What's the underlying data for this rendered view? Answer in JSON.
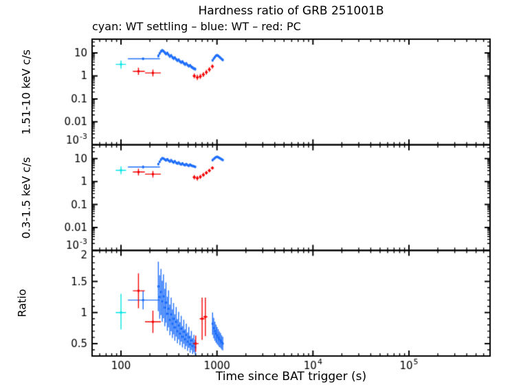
{
  "title": "Hardness ratio of GRB 251001B",
  "subtitle": "cyan: WT settling – blue: WT – red: PC",
  "colors": {
    "wt_settling": "#00e6e6",
    "wt": "#1e6efc",
    "pc": "#f40000",
    "axis": "#000000",
    "background": "#ffffff"
  },
  "chart_data": {
    "type": "scatter",
    "grid": "off",
    "legend_position": "subtitle-text",
    "x_axis": {
      "label": "Time since BAT trigger (s)",
      "scale": "log",
      "range": [
        50,
        700000
      ],
      "ticks": [
        {
          "v": 100,
          "base": "100"
        },
        {
          "v": 1000,
          "base": "1000"
        },
        {
          "v": 10000,
          "base": "10",
          "exp": "4"
        },
        {
          "v": 100000,
          "base": "10",
          "exp": "5"
        }
      ]
    },
    "panels": [
      {
        "id": "hard",
        "ylabel": "1.51-10 keV c/s",
        "scale": "log",
        "range": [
          0.001,
          40
        ],
        "ticks": [
          {
            "v": 10,
            "base": "10"
          },
          {
            "v": 1,
            "base": "1"
          },
          {
            "v": 0.1,
            "base": "0.1"
          },
          {
            "v": 0.01,
            "base": "0.01"
          },
          {
            "v": 0.001,
            "base": "10",
            "exp": "-3"
          }
        ]
      },
      {
        "id": "soft",
        "ylabel": "0.3-1.5 keV c/s",
        "scale": "log",
        "range": [
          0.001,
          40
        ],
        "ticks": [
          {
            "v": 10,
            "base": "10"
          },
          {
            "v": 1,
            "base": "1"
          },
          {
            "v": 0.1,
            "base": "0.1"
          },
          {
            "v": 0.01,
            "base": "0.01"
          },
          {
            "v": 0.001,
            "base": "10",
            "exp": "-3"
          }
        ]
      },
      {
        "id": "ratio",
        "ylabel": "Ratio",
        "scale": "linear",
        "range": [
          0.3,
          2
        ],
        "ticks": [
          {
            "v": 2,
            "base": "2"
          },
          {
            "v": 1.5,
            "base": "1.5"
          },
          {
            "v": 1,
            "base": "1"
          },
          {
            "v": 0.5,
            "base": "0.5"
          }
        ]
      }
    ],
    "series": [
      {
        "name": "WT settling",
        "color_key": "wt_settling",
        "data": {
          "hard": [
            {
              "t": [
                100
              ],
              "t_lo": [
                88
              ],
              "t_hi": [
                113
              ],
              "y": [
                3.2
              ],
              "y_lo": [
                2.1
              ],
              "y_hi": [
                4.7
              ]
            }
          ],
          "soft": [
            {
              "t": [
                100
              ],
              "t_lo": [
                88
              ],
              "t_hi": [
                113
              ],
              "y": [
                3.1
              ],
              "y_lo": [
                2.1
              ],
              "y_hi": [
                4.5
              ]
            }
          ],
          "ratio": [
            {
              "t": [
                100
              ],
              "t_lo": [
                88
              ],
              "t_hi": [
                113
              ],
              "y": [
                1.0
              ],
              "y_lo": [
                0.73
              ],
              "y_hi": [
                1.3
              ]
            }
          ]
        }
      },
      {
        "name": "WT",
        "color_key": "wt",
        "data": {
          "hard": [
            {
              "t": [
                170
              ],
              "t_lo": [
                118
              ],
              "t_hi": [
                255
              ],
              "y": [
                5.6
              ],
              "y_lo": [
                4.9
              ],
              "y_hi": [
                6.4
              ]
            },
            {
              "t": [
                245,
                253,
                261,
                269,
                277,
                286,
                294,
                304,
                313,
                323,
                333,
                343,
                353,
                364,
                376,
                387,
                399,
                411,
                424,
                437,
                451,
                465,
                479,
                494,
                509,
                525,
                541,
                558,
                575,
                593
              ],
              "y": [
                7.5,
                9.6,
                11.8,
                13.0,
                12.1,
                10.5,
                9.2,
                9.9,
                8.4,
                7.2,
                7.8,
                6.6,
                5.8,
                6.3,
                5.3,
                4.7,
                5.1,
                4.3,
                3.9,
                4.2,
                3.6,
                3.2,
                3.5,
                3.0,
                2.7,
                2.9,
                2.5,
                2.3,
                2.1,
                2.0
              ],
              "t_frac": 0.012,
              "y_frac": 0.16
            },
            {
              "t": [
                900,
                925,
                950,
                977,
                1003,
                1031,
                1059,
                1088,
                1118,
                1149
              ],
              "y": [
                4.8,
                5.7,
                6.6,
                7.6,
                8.0,
                7.5,
                6.8,
                6.1,
                5.5,
                5.0
              ],
              "t_frac": 0.012,
              "y_frac": 0.13
            }
          ],
          "soft": [
            {
              "t": [
                170
              ],
              "t_lo": [
                118
              ],
              "t_hi": [
                255
              ],
              "y": [
                4.3
              ],
              "y_lo": [
                3.7
              ],
              "y_hi": [
                5.0
              ]
            },
            {
              "t": [
                245,
                253,
                261,
                269,
                277,
                286,
                294,
                304,
                313,
                323,
                333,
                343,
                353,
                364,
                376,
                387,
                399,
                411,
                424,
                437,
                451,
                465,
                479,
                494,
                509,
                525,
                541,
                558,
                575,
                593
              ],
              "y": [
                5.8,
                7.3,
                9.1,
                10.4,
                10.1,
                9.2,
                8.4,
                9.4,
                8.3,
                7.5,
                8.5,
                7.5,
                6.8,
                7.7,
                6.6,
                6.1,
                6.8,
                6.0,
                5.6,
                6.2,
                5.5,
                5.2,
                5.8,
                5.2,
                4.9,
                5.5,
                5.0,
                4.8,
                4.6,
                4.4
              ],
              "t_frac": 0.012,
              "y_frac": 0.13
            },
            {
              "t": [
                900,
                925,
                950,
                977,
                1003,
                1031,
                1059,
                1088,
                1118,
                1149
              ],
              "y": [
                8.6,
                9.6,
                10.6,
                11.6,
                12.0,
                11.4,
                10.7,
                10.0,
                9.3,
                8.7
              ],
              "t_frac": 0.012,
              "y_frac": 0.11
            }
          ],
          "ratio": [
            {
              "t": [
                170
              ],
              "t_lo": [
                118
              ],
              "t_hi": [
                255
              ],
              "y": [
                1.2
              ],
              "y_lo": [
                1.05
              ],
              "y_hi": [
                1.35
              ]
            },
            {
              "t": [
                245,
                253,
                261,
                269,
                277,
                286,
                294,
                304,
                313,
                323,
                333,
                343,
                353,
                364,
                376,
                387,
                399,
                411,
                424,
                437,
                451,
                465,
                479,
                494,
                509,
                525,
                541,
                558,
                575,
                593
              ],
              "y": [
                1.42,
                1.25,
                1.33,
                1.18,
                1.26,
                1.08,
                1.16,
                0.98,
                1.06,
                0.88,
                0.97,
                0.82,
                0.9,
                0.76,
                0.85,
                0.7,
                0.79,
                0.66,
                0.74,
                0.61,
                0.69,
                0.57,
                0.64,
                0.53,
                0.6,
                0.49,
                0.55,
                0.46,
                0.5,
                0.44
              ],
              "t_frac": 0.012,
              "y_frac": 0.28
            },
            {
              "t": [
                900,
                925,
                950,
                977,
                1003,
                1031,
                1059,
                1088,
                1118,
                1149
              ],
              "y": [
                0.82,
                0.75,
                0.7,
                0.66,
                0.63,
                0.6,
                0.57,
                0.55,
                0.52,
                0.5
              ],
              "t_frac": 0.012,
              "y_frac": 0.22
            }
          ]
        }
      },
      {
        "name": "PC",
        "color_key": "pc",
        "data": {
          "hard": [
            {
              "t": [
                152,
                215
              ],
              "t_lo": [
                133,
                178
              ],
              "t_hi": [
                177,
                260
              ],
              "y": [
                1.6,
                1.35
              ],
              "y_lo": [
                1.1,
                0.95
              ],
              "y_hi": [
                2.3,
                1.9
              ]
            },
            {
              "t": [
                580,
                624,
                671,
                721,
                775,
                833,
                896
              ],
              "t_lo": [
                558,
                601,
                647,
                695,
                747,
                803,
                863
              ],
              "t_hi": [
                603,
                648,
                696,
                748,
                804,
                864,
                930
              ],
              "y": [
                1.0,
                0.86,
                0.95,
                1.15,
                1.45,
                1.9,
                2.6
              ],
              "y_lo": [
                0.78,
                0.66,
                0.74,
                0.9,
                1.15,
                1.52,
                2.1
              ],
              "y_hi": [
                1.28,
                1.12,
                1.22,
                1.47,
                1.83,
                2.4,
                3.2
              ]
            }
          ],
          "soft": [
            {
              "t": [
                152,
                215
              ],
              "t_lo": [
                133,
                178
              ],
              "t_hi": [
                177,
                260
              ],
              "y": [
                2.6,
                2.1
              ],
              "y_lo": [
                1.85,
                1.5
              ],
              "y_hi": [
                3.6,
                2.9
              ]
            },
            {
              "t": [
                580,
                624,
                671,
                721,
                775,
                833,
                896
              ],
              "t_lo": [
                558,
                601,
                647,
                695,
                747,
                803,
                863
              ],
              "t_hi": [
                603,
                648,
                696,
                748,
                804,
                864,
                930
              ],
              "y": [
                1.55,
                1.4,
                1.6,
                1.95,
                2.4,
                3.0,
                3.9
              ],
              "y_lo": [
                1.25,
                1.1,
                1.3,
                1.6,
                2.0,
                2.5,
                3.3
              ],
              "y_hi": [
                1.9,
                1.75,
                1.95,
                2.4,
                2.9,
                3.6,
                4.6
              ]
            }
          ],
          "ratio": [
            {
              "t": [
                152,
                215
              ],
              "t_lo": [
                133,
                178
              ],
              "t_hi": [
                177,
                260
              ],
              "y": [
                1.35,
                0.85
              ],
              "y_lo": [
                1.07,
                0.67
              ],
              "y_hi": [
                1.63,
                1.03
              ]
            },
            {
              "t": [
                600,
                700,
                757
              ],
              "t_lo": [
                560,
                660,
                722
              ],
              "t_hi": [
                645,
                742,
                795
              ],
              "y": [
                0.5,
                0.9,
                0.93
              ],
              "y_lo": [
                0.37,
                0.56,
                0.62
              ],
              "y_hi": [
                0.63,
                1.24,
                1.24
              ]
            }
          ]
        }
      }
    ]
  }
}
